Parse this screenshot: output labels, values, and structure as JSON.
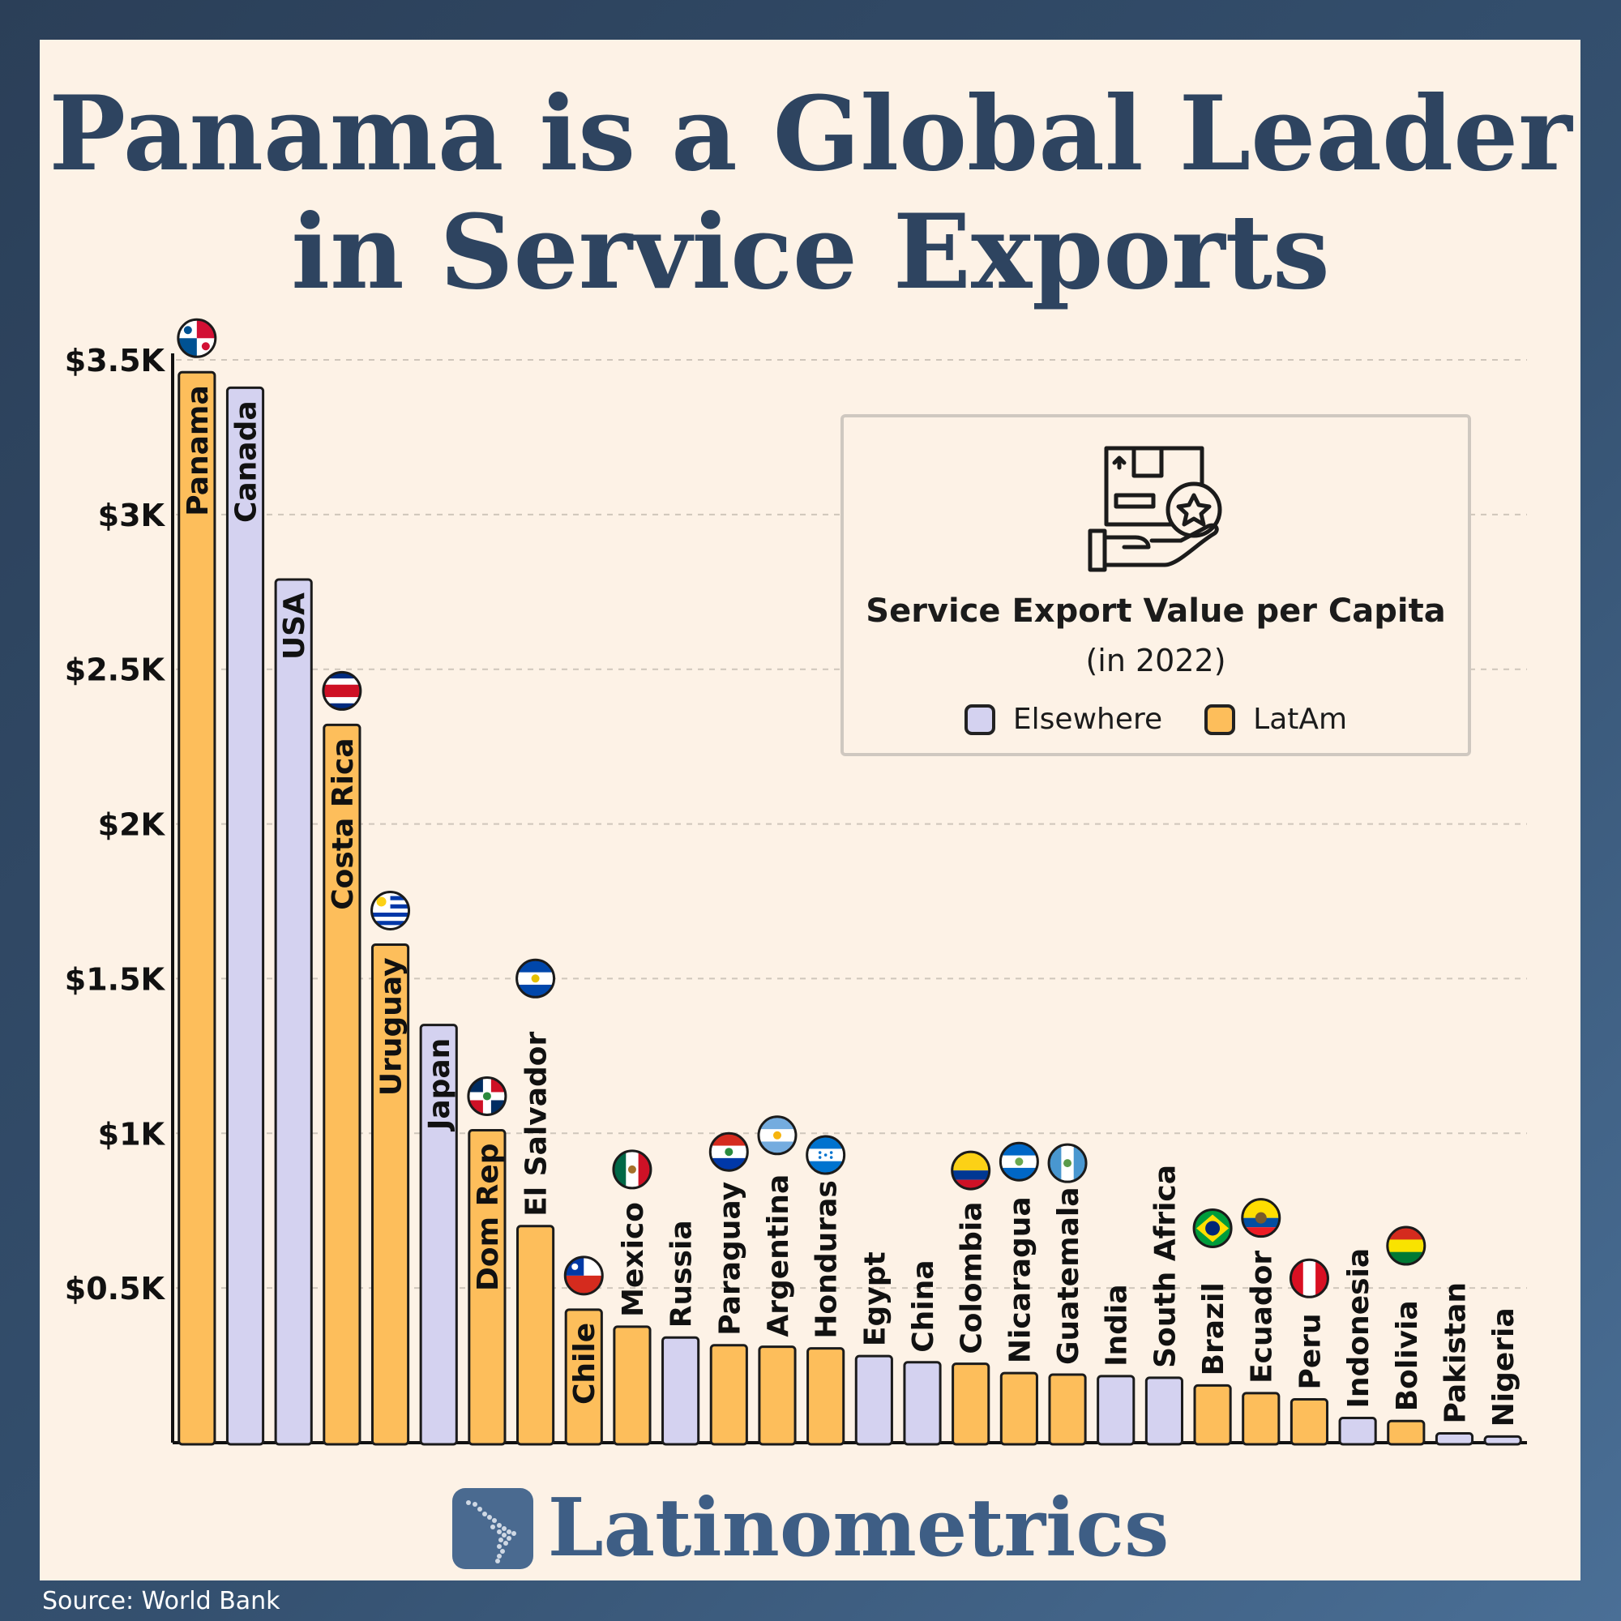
{
  "title_lines": [
    "Panama is a Global Leader",
    "in Service Exports"
  ],
  "legend": {
    "title": "Service Export Value per Capita",
    "subtitle": "(in 2022)",
    "items": [
      {
        "label": "Elsewhere",
        "color": "#d4d2f0"
      },
      {
        "label": "LatAm",
        "color": "#fdbe5b"
      }
    ],
    "icon": "box-in-hand-with-star-icon"
  },
  "brand": {
    "name": "Latinometrics",
    "icon": "latin-america-map-icon"
  },
  "source": "Source: World Bank",
  "chart_data": {
    "type": "bar",
    "ylim": [
      0,
      3500
    ],
    "yticks": [
      {
        "value": 500,
        "label": "$0.5K"
      },
      {
        "value": 1000,
        "label": "$1K"
      },
      {
        "value": 1500,
        "label": "$1.5K"
      },
      {
        "value": 2000,
        "label": "$2K"
      },
      {
        "value": 2500,
        "label": "$2.5K"
      },
      {
        "value": 3000,
        "label": "$3K"
      },
      {
        "value": 3500,
        "label": "$3.5K"
      }
    ],
    "grid": true,
    "legend_position": "top-right",
    "categories": [
      "Panama",
      "Canada",
      "USA",
      "Costa Rica",
      "Uruguay",
      "Japan",
      "Dom Rep",
      "El Salvador",
      "Chile",
      "Mexico",
      "Russia",
      "Paraguay",
      "Argentina",
      "Honduras",
      "Egypt",
      "China",
      "Colombia",
      "Nicaragua",
      "Guatemala",
      "India",
      "South Africa",
      "Brazil",
      "Ecuador",
      "Peru",
      "Indonesia",
      "Bolivia",
      "Pakistan",
      "Nigeria"
    ],
    "values": [
      3460,
      3410,
      2790,
      2320,
      1610,
      1350,
      1010,
      700,
      430,
      375,
      340,
      315,
      310,
      305,
      280,
      260,
      255,
      225,
      220,
      215,
      210,
      185,
      160,
      140,
      80,
      70,
      30,
      20
    ],
    "region": [
      "LatAm",
      "Elsewhere",
      "Elsewhere",
      "LatAm",
      "LatAm",
      "Elsewhere",
      "LatAm",
      "LatAm",
      "LatAm",
      "LatAm",
      "Elsewhere",
      "LatAm",
      "LatAm",
      "LatAm",
      "Elsewhere",
      "Elsewhere",
      "LatAm",
      "LatAm",
      "LatAm",
      "Elsewhere",
      "Elsewhere",
      "LatAm",
      "LatAm",
      "LatAm",
      "Elsewhere",
      "LatAm",
      "Elsewhere",
      "Elsewhere"
    ],
    "flags": {
      "Panama": "panama-flag-icon",
      "Costa Rica": "costa-rica-flag-icon",
      "Uruguay": "uruguay-flag-icon",
      "Dom Rep": "dominican-republic-flag-icon",
      "El Salvador": "el-salvador-flag-icon",
      "Chile": "chile-flag-icon",
      "Mexico": "mexico-flag-icon",
      "Paraguay": "paraguay-flag-icon",
      "Argentina": "argentina-flag-icon",
      "Honduras": "honduras-flag-icon",
      "Colombia": "colombia-flag-icon",
      "Nicaragua": "nicaragua-flag-icon",
      "Guatemala": "guatemala-flag-icon",
      "Brazil": "brazil-flag-icon",
      "Ecuador": "ecuador-flag-icon",
      "Peru": "peru-flag-icon",
      "Bolivia": "bolivia-flag-icon"
    }
  }
}
